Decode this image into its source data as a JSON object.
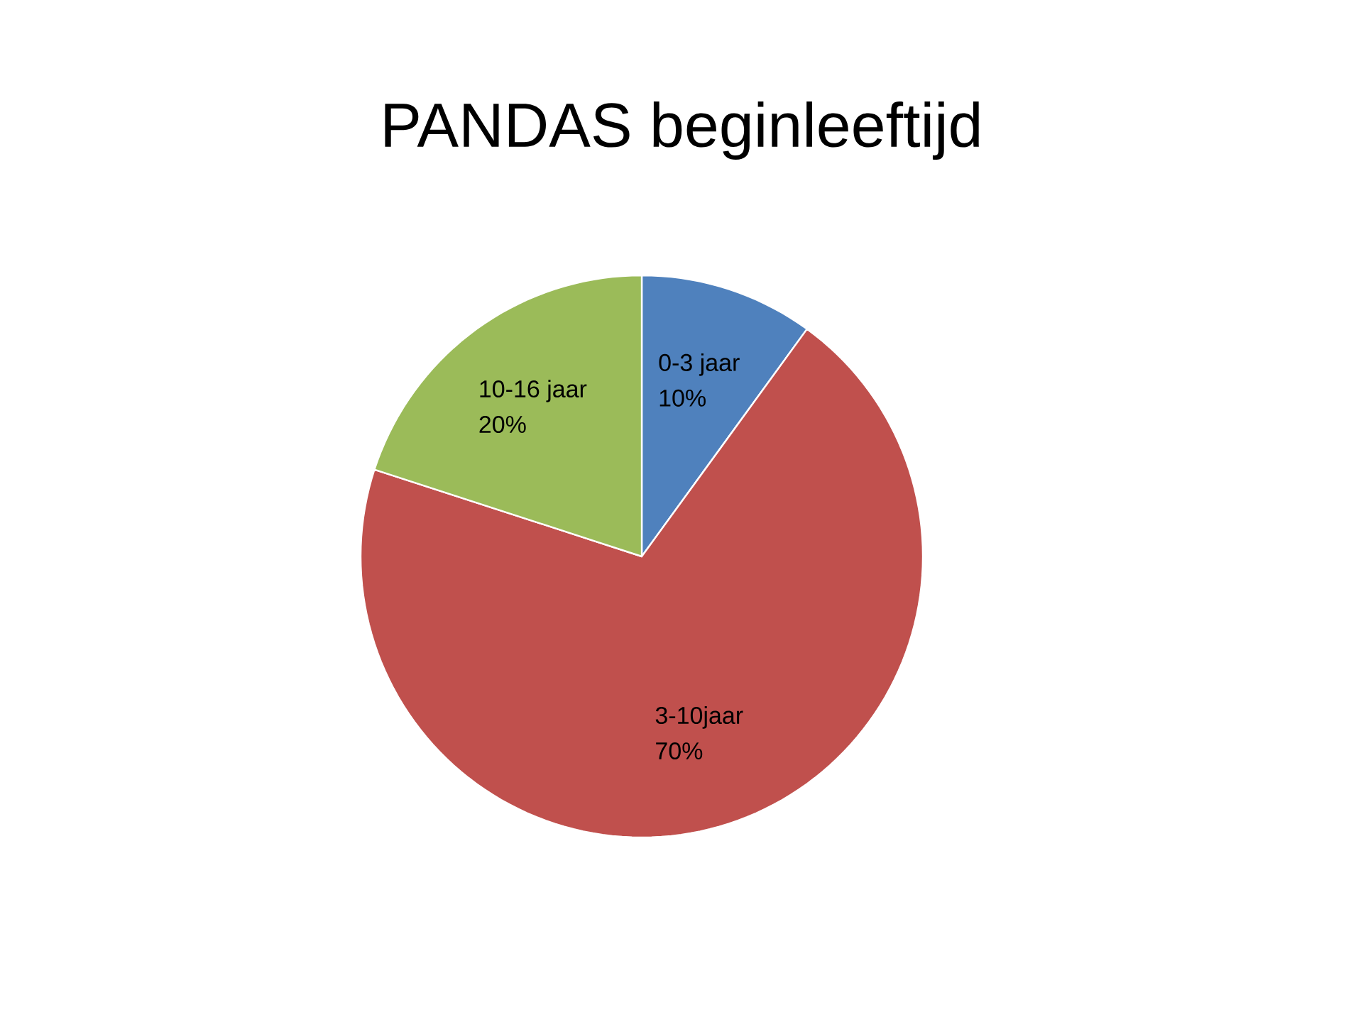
{
  "chart_data": {
    "type": "pie",
    "title": "PANDAS beginleeftijd",
    "categories": [
      "0-3 jaar",
      "3-10jaar",
      "10-16 jaar"
    ],
    "values": [
      10,
      70,
      20
    ],
    "value_labels": [
      "10%",
      "70%",
      "20%"
    ],
    "colors": [
      "#4f81bd",
      "#c0504d",
      "#9bbb59"
    ]
  }
}
